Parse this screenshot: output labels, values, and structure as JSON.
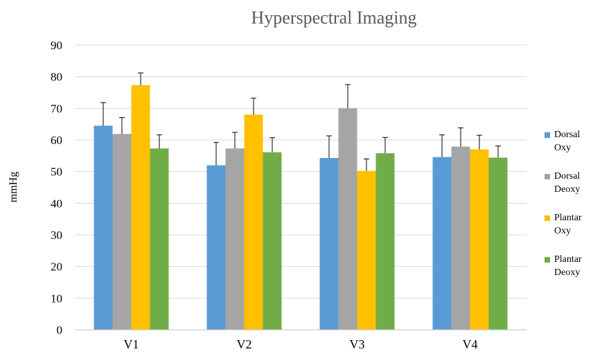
{
  "chart_data": {
    "type": "bar",
    "title": "Hyperspectral Imaging",
    "xlabel": "",
    "ylabel": "mmHg",
    "ylim": [
      0,
      90
    ],
    "yticks": [
      0,
      10,
      20,
      30,
      40,
      50,
      60,
      70,
      80,
      90
    ],
    "grid": true,
    "legend_position": "right",
    "categories": [
      "V1",
      "V2",
      "V3",
      "V4"
    ],
    "series": [
      {
        "name": "Dorsal Oxy",
        "legend_lines": [
          "Dorsal",
          "Oxy"
        ],
        "color": "#5B9BD5",
        "values": [
          64.5,
          52.0,
          54.3,
          54.6
        ],
        "error": [
          7.3,
          7.2,
          7.0,
          7.0
        ]
      },
      {
        "name": "Dorsal Deoxy",
        "legend_lines": [
          "Dorsal",
          "Deoxy"
        ],
        "color": "#A5A5A5",
        "values": [
          61.9,
          57.3,
          70.0,
          57.9
        ],
        "error": [
          5.2,
          5.1,
          7.5,
          5.9
        ]
      },
      {
        "name": "Plantar Oxy",
        "legend_lines": [
          "Plantar",
          "Oxy"
        ],
        "color": "#FFC000",
        "values": [
          77.3,
          68.0,
          50.2,
          57.0
        ],
        "error": [
          3.9,
          5.2,
          3.8,
          4.5
        ]
      },
      {
        "name": "Plantar Deoxy",
        "legend_lines": [
          "Plantar",
          "Deoxy"
        ],
        "color": "#70AD47",
        "values": [
          57.3,
          56.1,
          55.8,
          54.4
        ],
        "error": [
          4.3,
          4.6,
          5.0,
          3.7
        ]
      }
    ]
  }
}
